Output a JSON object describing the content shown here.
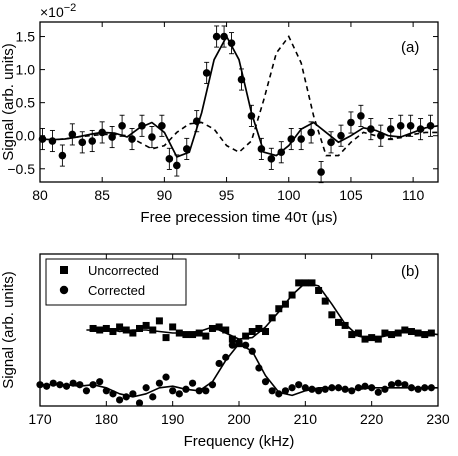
{
  "chart_data": [
    {
      "type": "scatter",
      "panel_label": "(a)",
      "xlabel": "Free precession time 40τ (μs)",
      "ylabel": "Signal (arb. units)",
      "y_multiplier": "×10",
      "y_multiplier_exp": "−2",
      "xlim": [
        80,
        112
      ],
      "ylim": [
        -0.7,
        1.72
      ],
      "xticks": [
        80,
        85,
        90,
        95,
        100,
        105,
        110
      ],
      "xtick_labels": [
        "80",
        "85",
        "90",
        "95",
        "100",
        "105",
        "110"
      ],
      "yticks": [
        -0.5,
        0.0,
        0.5,
        1.0,
        1.5
      ],
      "ytick_labels": [
        "−0.5",
        "0.0",
        "0.5",
        "1.0",
        "1.5"
      ],
      "series": [
        {
          "kind": "points_with_errorbars",
          "color": "#000000",
          "x": [
            80.2,
            81.0,
            81.8,
            82.6,
            83.4,
            84.2,
            85.0,
            85.8,
            86.6,
            87.4,
            88.2,
            89.0,
            89.8,
            90.4,
            91.0,
            91.8,
            92.6,
            93.4,
            94.2,
            94.8,
            95.4,
            96.2,
            97.0,
            97.8,
            98.6,
            99.4,
            100.2,
            101.0,
            101.8,
            102.6,
            103.4,
            104.2,
            105.0,
            105.8,
            106.6,
            107.4,
            108.2,
            109.0,
            109.8,
            110.6,
            111.4
          ],
          "y": [
            -0.05,
            -0.08,
            -0.3,
            0.02,
            -0.1,
            -0.08,
            0.05,
            -0.02,
            0.15,
            -0.05,
            0.15,
            -0.02,
            0.15,
            -0.35,
            -0.45,
            -0.2,
            0.22,
            0.95,
            1.5,
            1.5,
            1.4,
            0.85,
            0.3,
            -0.2,
            -0.35,
            -0.25,
            -0.05,
            -0.05,
            0.05,
            -0.55,
            -0.1,
            0.0,
            0.2,
            0.3,
            0.1,
            0.0,
            0.1,
            0.15,
            0.15,
            0.1,
            0.15
          ],
          "err": [
            0.16,
            0.16,
            0.16,
            0.16,
            0.16,
            0.16,
            0.16,
            0.16,
            0.16,
            0.16,
            0.16,
            0.16,
            0.16,
            0.16,
            0.16,
            0.16,
            0.16,
            0.16,
            0.16,
            0.16,
            0.16,
            0.16,
            0.16,
            0.16,
            0.16,
            0.16,
            0.16,
            0.16,
            0.16,
            0.16,
            0.16,
            0.16,
            0.16,
            0.16,
            0.16,
            0.16,
            0.16,
            0.16,
            0.16,
            0.16,
            0.16
          ]
        },
        {
          "kind": "solid_line",
          "color": "#000000",
          "x": [
            80,
            81,
            82,
            83,
            84,
            85,
            86,
            87,
            88,
            89,
            90,
            91,
            92,
            93,
            94,
            95,
            96,
            97,
            98,
            99,
            100,
            101,
            102,
            103,
            104,
            105,
            106,
            107,
            108,
            109,
            110,
            111,
            112
          ],
          "y": [
            -0.05,
            -0.06,
            -0.05,
            -0.02,
            0.02,
            0.05,
            0.04,
            -0.02,
            0.12,
            0.2,
            0.05,
            -0.32,
            -0.25,
            0.35,
            1.15,
            1.5,
            1.15,
            0.35,
            -0.25,
            -0.3,
            -0.15,
            0.1,
            0.2,
            0.05,
            -0.1,
            0.0,
            0.12,
            0.08,
            0.0,
            -0.02,
            0.05,
            0.12,
            0.15
          ]
        },
        {
          "kind": "dashed_line",
          "color": "#000000",
          "x": [
            80,
            81,
            82,
            83,
            84,
            85,
            86,
            87,
            88,
            89,
            90,
            91,
            92,
            93,
            94,
            95,
            96,
            97,
            98,
            99,
            100,
            101,
            102,
            103,
            104,
            105,
            106,
            107,
            108,
            109,
            110,
            111,
            112
          ],
          "y": [
            -0.05,
            -0.06,
            -0.05,
            -0.02,
            0.0,
            0.02,
            0.02,
            0.0,
            -0.1,
            -0.2,
            -0.15,
            0.05,
            0.18,
            0.2,
            0.1,
            -0.15,
            -0.25,
            -0.08,
            0.55,
            1.25,
            1.5,
            1.1,
            0.3,
            -0.3,
            -0.3,
            -0.1,
            0.05,
            0.0,
            -0.05,
            -0.03,
            0.02,
            0.05,
            0.05
          ]
        }
      ]
    },
    {
      "type": "scatter",
      "panel_label": "(b)",
      "xlabel": "Frequency (kHz)",
      "ylabel": "Signal (arb. units)",
      "xlim": [
        170,
        230
      ],
      "ylim": [
        0,
        1
      ],
      "xticks": [
        170,
        180,
        190,
        200,
        210,
        220,
        230
      ],
      "xtick_labels": [
        "170",
        "180",
        "190",
        "200",
        "210",
        "220",
        "230"
      ],
      "legend_position": "top-left",
      "series": [
        {
          "name": "Uncorrected",
          "marker": "square",
          "color": "#000000",
          "x": [
            178,
            179,
            180,
            181,
            182,
            183,
            184,
            185,
            186,
            187,
            188,
            189,
            190,
            191,
            192,
            193,
            194,
            195,
            196,
            197,
            198,
            199,
            200,
            201,
            202,
            203,
            204,
            205,
            206,
            207,
            208,
            209,
            210,
            211,
            212,
            213,
            214,
            215,
            216,
            217,
            218,
            219,
            220,
            221,
            222,
            223,
            224,
            225,
            226,
            227,
            228,
            229
          ],
          "y": [
            0.51,
            0.5,
            0.51,
            0.49,
            0.52,
            0.5,
            0.48,
            0.51,
            0.53,
            0.5,
            0.56,
            0.45,
            0.52,
            0.48,
            0.47,
            0.47,
            0.48,
            0.46,
            0.51,
            0.52,
            0.5,
            0.44,
            0.41,
            0.46,
            0.49,
            0.51,
            0.49,
            0.58,
            0.64,
            0.67,
            0.73,
            0.81,
            0.81,
            0.81,
            0.76,
            0.69,
            0.6,
            0.55,
            0.53,
            0.47,
            0.48,
            0.44,
            0.45,
            0.44,
            0.48,
            0.47,
            0.48,
            0.5,
            0.49,
            0.48,
            0.47,
            0.48
          ]
        },
        {
          "name": "Corrected",
          "marker": "circle",
          "color": "#000000",
          "x": [
            170,
            171,
            172,
            173,
            174,
            175,
            176,
            177,
            178,
            179,
            180,
            181,
            182,
            183,
            184,
            185,
            186,
            187,
            188,
            189,
            190,
            191,
            192,
            193,
            194,
            195,
            196,
            197,
            198,
            199,
            200,
            201,
            202,
            203,
            204,
            205,
            206,
            207,
            208,
            209,
            210,
            211,
            212,
            213,
            214,
            215,
            216,
            217,
            218,
            219,
            220,
            221,
            222,
            223,
            224,
            225,
            226,
            227,
            228,
            229
          ],
          "y": [
            0.14,
            0.13,
            0.15,
            0.14,
            0.13,
            0.15,
            0.14,
            0.1,
            0.14,
            0.16,
            0.1,
            0.08,
            0.04,
            0.06,
            0.08,
            0.02,
            0.12,
            0.06,
            0.15,
            0.19,
            0.1,
            0.08,
            0.11,
            0.15,
            0.1,
            0.1,
            0.14,
            0.28,
            0.32,
            0.4,
            0.42,
            0.4,
            0.36,
            0.25,
            0.16,
            0.1,
            0.08,
            0.1,
            0.12,
            0.14,
            0.12,
            0.11,
            0.1,
            0.11,
            0.12,
            0.12,
            0.11,
            0.1,
            0.12,
            0.13,
            0.12,
            0.09,
            0.11,
            0.14,
            0.15,
            0.14,
            0.12,
            0.11,
            0.12,
            0.12
          ]
        },
        {
          "kind": "solid_line",
          "name": "",
          "color": "#000000",
          "x": [
            177,
            178,
            180,
            182,
            184,
            186,
            188,
            190,
            192,
            194,
            196,
            198,
            200,
            202,
            204,
            206,
            208,
            210,
            212,
            214,
            216,
            218,
            220,
            222,
            224,
            226,
            228,
            230
          ],
          "y": [
            0.5,
            0.5,
            0.51,
            0.49,
            0.5,
            0.5,
            0.49,
            0.48,
            0.48,
            0.49,
            0.52,
            0.48,
            0.44,
            0.45,
            0.52,
            0.62,
            0.73,
            0.81,
            0.79,
            0.67,
            0.54,
            0.46,
            0.44,
            0.46,
            0.49,
            0.49,
            0.48,
            0.47
          ]
        },
        {
          "kind": "solid_line",
          "name": "",
          "color": "#000000",
          "x": [
            170,
            172,
            174,
            176,
            178,
            180,
            182,
            184,
            186,
            188,
            190,
            192,
            194,
            196,
            198,
            200,
            202,
            204,
            206,
            208,
            210,
            212,
            214,
            216,
            218,
            220,
            222,
            224,
            226,
            228,
            230
          ],
          "y": [
            0.14,
            0.14,
            0.14,
            0.13,
            0.14,
            0.12,
            0.08,
            0.06,
            0.08,
            0.12,
            0.13,
            0.11,
            0.1,
            0.16,
            0.3,
            0.41,
            0.36,
            0.2,
            0.09,
            0.07,
            0.1,
            0.12,
            0.12,
            0.11,
            0.11,
            0.12,
            0.12,
            0.12,
            0.12,
            0.12,
            0.12
          ]
        }
      ]
    }
  ]
}
